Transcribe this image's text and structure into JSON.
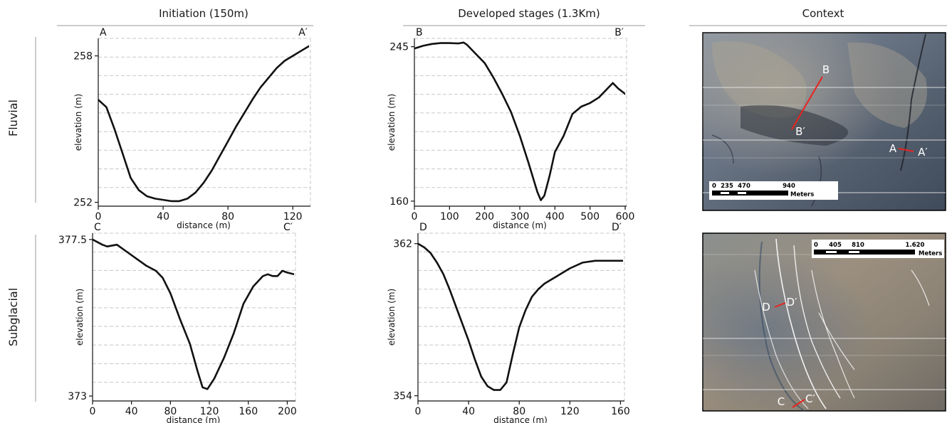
{
  "column_headers": {
    "initiation": "Initiation (150m)",
    "developed": "Developed stages  (1.3Km)",
    "context": "Context"
  },
  "row_headers": {
    "fluvial": "Fluvial",
    "subglacial": "Subglacial"
  },
  "chart_data": [
    {
      "id": "A",
      "type": "line",
      "start_label": "A",
      "end_label": "A′",
      "xlabel": "distance (m)",
      "ylabel": "elevation (m)",
      "xlim": [
        0,
        130
      ],
      "ylim": [
        251.9,
        258.6
      ],
      "xticks": [
        0,
        40,
        80,
        120
      ],
      "yticks": [
        252,
        258
      ],
      "grid": "horizontal-dashed",
      "series": [
        {
          "x": [
            0,
            5,
            10,
            15,
            20,
            25,
            30,
            35,
            40,
            45,
            50,
            55,
            60,
            65,
            70,
            75,
            80,
            85,
            90,
            95,
            100,
            105,
            110,
            115,
            120,
            125,
            130
          ],
          "y": [
            256.2,
            255.9,
            255.0,
            254.0,
            253.0,
            252.5,
            252.25,
            252.15,
            252.1,
            252.05,
            252.05,
            252.15,
            252.4,
            252.8,
            253.3,
            253.9,
            254.5,
            255.1,
            255.65,
            256.2,
            256.7,
            257.1,
            257.5,
            257.8,
            258.0,
            258.2,
            258.4
          ]
        }
      ]
    },
    {
      "id": "B",
      "type": "line",
      "start_label": "B",
      "end_label": "B′",
      "xlabel": "distance (m)",
      "ylabel": "elevation (m)",
      "xlim": [
        0,
        600
      ],
      "ylim": [
        158,
        248
      ],
      "xticks": [
        0,
        100,
        200,
        300,
        400,
        500,
        600
      ],
      "yticks": [
        160,
        245
      ],
      "grid": "horizontal-dashed",
      "series": [
        {
          "x": [
            0,
            25,
            50,
            75,
            100,
            125,
            140,
            150,
            175,
            200,
            225,
            250,
            275,
            300,
            325,
            350,
            360,
            370,
            385,
            400,
            425,
            450,
            475,
            500,
            525,
            550,
            565,
            580,
            600
          ],
          "y": [
            244,
            245.5,
            246.5,
            247,
            247,
            246.8,
            247.3,
            246,
            241,
            236,
            228,
            219,
            209,
            196,
            181,
            165,
            160.5,
            163,
            174,
            187,
            196,
            208,
            212,
            214,
            217,
            222,
            225,
            222,
            219
          ]
        }
      ]
    },
    {
      "id": "C",
      "type": "line",
      "start_label": "C",
      "end_label": "C′",
      "xlabel": "distance (m)",
      "ylabel": "elevation (m)",
      "xlim": [
        0,
        207
      ],
      "ylim": [
        372.9,
        377.6
      ],
      "xticks": [
        0,
        40,
        80,
        120,
        160,
        200
      ],
      "yticks": [
        373,
        377.5
      ],
      "grid": "horizontal-dashed",
      "series": [
        {
          "x": [
            0,
            10,
            15,
            25,
            35,
            45,
            55,
            65,
            72,
            80,
            90,
            100,
            108,
            113,
            118,
            125,
            135,
            145,
            155,
            165,
            175,
            180,
            185,
            190,
            195,
            200,
            207
          ],
          "y": [
            377.5,
            377.35,
            377.3,
            377.35,
            377.15,
            376.95,
            376.75,
            376.6,
            376.4,
            375.95,
            375.2,
            374.5,
            373.7,
            373.25,
            373.2,
            373.5,
            374.1,
            374.8,
            375.65,
            376.15,
            376.45,
            376.5,
            376.45,
            376.45,
            376.6,
            376.55,
            376.5
          ]
        }
      ]
    },
    {
      "id": "D",
      "type": "line",
      "start_label": "D",
      "end_label": "D′",
      "xlabel": "distance (m)",
      "ylabel": "elevation (m)",
      "xlim": [
        0,
        162
      ],
      "ylim": [
        353.8,
        362.4
      ],
      "xticks": [
        0,
        40,
        80,
        120,
        160
      ],
      "yticks": [
        354,
        362
      ],
      "grid": "horizontal-dashed",
      "series": [
        {
          "x": [
            0,
            5,
            10,
            15,
            20,
            25,
            30,
            35,
            40,
            45,
            50,
            55,
            60,
            65,
            70,
            75,
            80,
            85,
            90,
            95,
            100,
            110,
            120,
            130,
            140,
            150,
            162
          ],
          "y": [
            362,
            361.8,
            361.5,
            361.0,
            360.4,
            359.6,
            358.7,
            357.8,
            356.9,
            355.9,
            355.0,
            354.5,
            354.3,
            354.3,
            354.7,
            356.2,
            357.6,
            358.5,
            359.2,
            359.6,
            359.9,
            360.3,
            360.7,
            361.0,
            361.1,
            361.1,
            361.1
          ]
        }
      ]
    }
  ],
  "maps": [
    {
      "id": "map-fluvial",
      "scale_bar": {
        "ticks": [
          "0",
          "235",
          "470",
          "940"
        ],
        "unit": "Meters"
      },
      "profile_labels": [
        "B",
        "B′",
        "A",
        "A′"
      ],
      "profile_color": "#e8231f"
    },
    {
      "id": "map-subglacial",
      "scale_bar": {
        "ticks": [
          "0",
          "405",
          "810",
          "1.620"
        ],
        "unit": "Meters"
      },
      "profile_labels": [
        "D",
        "D′",
        "C",
        "C′"
      ],
      "profile_color": "#e8231f"
    }
  ]
}
